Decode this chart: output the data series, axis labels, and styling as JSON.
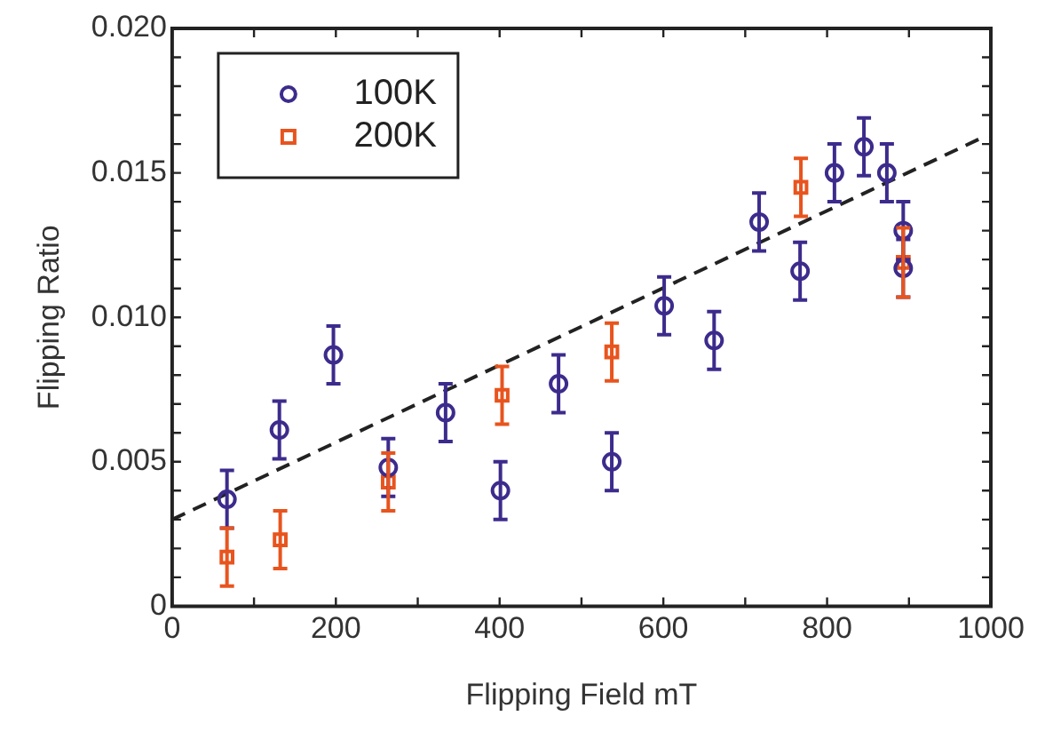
{
  "chart_data": {
    "type": "scatter",
    "xlabel": "Flipping Field mT",
    "ylabel": "Flipping Ratio",
    "xlim": [
      0,
      1000
    ],
    "ylim": [
      0,
      0.02
    ],
    "xticks": [
      0,
      {
        "value": 100,
        "label": null
      },
      200,
      {
        "value": 300,
        "label": null
      },
      400,
      {
        "value": 500,
        "label": null
      },
      600,
      {
        "value": 700,
        "label": null
      },
      800,
      {
        "value": 900,
        "label": null
      },
      1000
    ],
    "yticks": [
      0,
      {
        "value": 0.001,
        "label": null
      },
      {
        "value": 0.002,
        "label": null
      },
      {
        "value": 0.003,
        "label": null
      },
      {
        "value": 0.004,
        "label": null
      },
      0.005,
      {
        "value": 0.006,
        "label": null
      },
      {
        "value": 0.007,
        "label": null
      },
      {
        "value": 0.008,
        "label": null
      },
      {
        "value": 0.009,
        "label": null
      },
      {
        "value": 0.01,
        "label": "0.010"
      },
      {
        "value": 0.011,
        "label": null
      },
      {
        "value": 0.012,
        "label": null
      },
      {
        "value": 0.013,
        "label": null
      },
      {
        "value": 0.014,
        "label": null
      },
      0.015,
      {
        "value": 0.016,
        "label": null
      },
      {
        "value": 0.017,
        "label": null
      },
      {
        "value": 0.018,
        "label": null
      },
      {
        "value": 0.019,
        "label": null
      },
      {
        "value": 0.02,
        "label": "0.020"
      }
    ],
    "grid": false,
    "legend": "top left",
    "series": [
      {
        "name": "100K",
        "marker": "circle",
        "color": "#3d2b8c",
        "x": [
          67,
          131,
          197,
          264,
          334,
          401,
          472,
          537,
          601,
          662,
          717,
          767,
          809,
          845,
          873,
          893,
          893
        ],
        "values": [
          0.0037,
          0.0061,
          0.0087,
          0.0048,
          0.0067,
          0.004,
          0.0077,
          0.005,
          0.0104,
          0.0092,
          0.0133,
          0.0116,
          0.015,
          0.0159,
          0.015,
          0.013,
          0.0117
        ],
        "errors": [
          0.001,
          0.001,
          0.001,
          0.001,
          0.001,
          0.001,
          0.001,
          0.001,
          0.001,
          0.001,
          0.001,
          0.001,
          0.001,
          0.001,
          0.001,
          0.001,
          0.001
        ]
      },
      {
        "name": "200K",
        "marker": "square",
        "color": "#e8541e",
        "x": [
          67,
          132,
          264,
          403,
          537,
          768,
          893
        ],
        "values": [
          0.0017,
          0.0023,
          0.0043,
          0.0073,
          0.0088,
          0.0145,
          0.0119
        ],
        "errors": [
          0.001,
          0.001,
          0.001,
          0.001,
          0.001,
          0.001,
          0.0012
        ]
      },
      {
        "type": "line",
        "marker": "none",
        "line_style": "dashed",
        "color": "#222222",
        "x": [
          0,
          988
        ],
        "values": [
          0.003,
          0.0162
        ]
      }
    ]
  }
}
